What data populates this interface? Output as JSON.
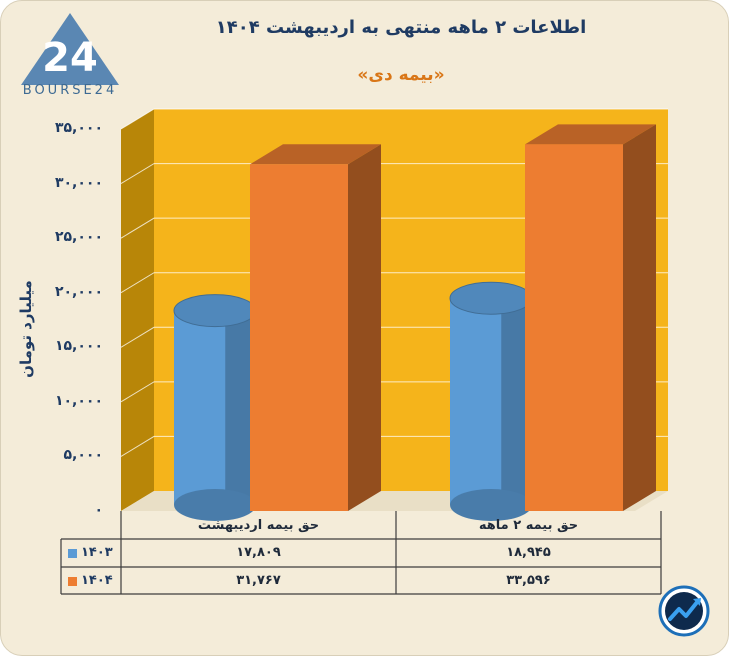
{
  "title": "اطلاعات ۲ ماهه منتهی به اردیبهشت ۱۴۰۴",
  "subtitle": "«بیمه دی»",
  "brand": {
    "logo_text": "BOURSE24",
    "logo_mark": "24"
  },
  "colors": {
    "series_1403": "#5b9bd5",
    "series_1404": "#ed7d31",
    "wall": "#f5b41b",
    "side_wall": "#b88608",
    "text": "#1f3b63"
  },
  "chart_data": {
    "type": "bar",
    "title": "اطلاعات ۲ ماهه منتهی به اردیبهشت ۱۴۰۴",
    "subtitle": "«بیمه دی»",
    "ylabel": "میلیارد تومان",
    "ylim": [
      0,
      35000
    ],
    "y_ticks": [
      "۰",
      "۵,۰۰۰",
      "۱۰,۰۰۰",
      "۱۵,۰۰۰",
      "۲۰,۰۰۰",
      "۲۵,۰۰۰",
      "۳۰,۰۰۰",
      "۳۵,۰۰۰"
    ],
    "categories": [
      "حق بیمه اردیبهشت",
      "حق بیمه ۲ ماهه"
    ],
    "series": [
      {
        "name": "۱۴۰۳",
        "values": [
          17809,
          18945
        ],
        "labels": [
          "۱۷,۸۰۹",
          "۱۸,۹۴۵"
        ],
        "shape": "cylinder"
      },
      {
        "name": "۱۴۰۴",
        "values": [
          31767,
          33596
        ],
        "labels": [
          "۳۱,۷۶۷",
          "۳۳,۵۹۶"
        ],
        "shape": "box"
      }
    ],
    "grid": true,
    "legend": "table-below"
  }
}
